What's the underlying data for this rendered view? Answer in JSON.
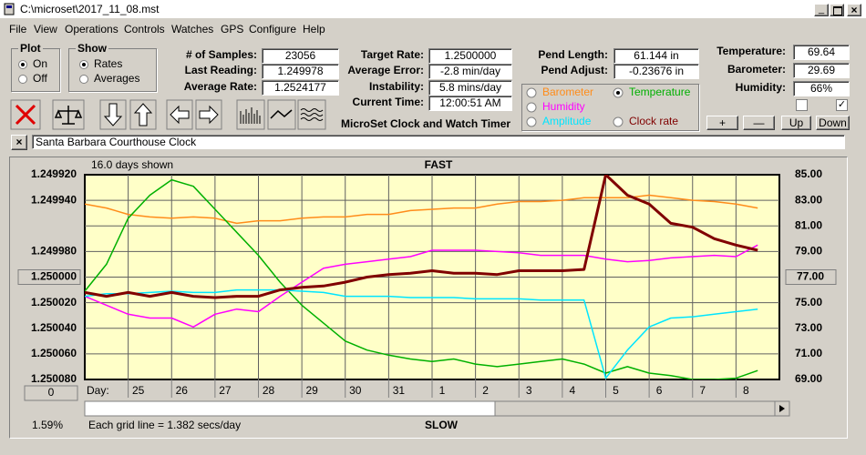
{
  "window": {
    "title": "C:\\microset\\2017_11_08.mst"
  },
  "menu": [
    "File",
    "View",
    "Operations",
    "Controls",
    "Watches",
    "GPS",
    "Configure",
    "Help"
  ],
  "plot_group": {
    "title": "Plot",
    "options": [
      {
        "label": "On",
        "checked": true
      },
      {
        "label": "Off",
        "checked": false
      }
    ]
  },
  "show_group": {
    "title": "Show",
    "options": [
      {
        "label": "Rates",
        "checked": true
      },
      {
        "label": "Averages",
        "checked": false
      }
    ]
  },
  "stats": [
    {
      "label": "# of Samples:",
      "value": "23056"
    },
    {
      "label": "Last Reading:",
      "value": "1.249978"
    },
    {
      "label": "Average Rate:",
      "value": "1.2524177"
    }
  ],
  "rate_stats": [
    {
      "label": "Target Rate:",
      "value": "1.2500000"
    },
    {
      "label": "Average Error:",
      "value": "-2.8 min/day"
    },
    {
      "label": "Instability:",
      "value": "5.8 mins/day"
    },
    {
      "label": "Current Time:",
      "value": "12:00:51 AM"
    }
  ],
  "pend": [
    {
      "label": "Pend Length:",
      "value": "61.144 in"
    },
    {
      "label": "Pend Adjust:",
      "value": "-0.23676 in"
    }
  ],
  "env": [
    {
      "label": "Temperature:",
      "value": "69.64"
    },
    {
      "label": "Barometer:",
      "value": "29.69"
    },
    {
      "label": "Humidity:",
      "value": "66%"
    }
  ],
  "checkboxes": [
    {
      "checked": false
    },
    {
      "checked": true
    }
  ],
  "buttons": [
    "+",
    "—",
    "Up",
    "Down"
  ],
  "app_name": "MicroSet Clock and Watch Timer",
  "clock_name": "Santa Barbara Courthouse Clock",
  "chart_data": {
    "type": "line",
    "selected_series": 1,
    "annotations": {
      "days_shown": "16.0 days shown",
      "top": "FAST",
      "bottom": "SLOW",
      "x_label": "Day:",
      "footer": "Each grid line = 1.382 secs/day",
      "percent": "1.59%",
      "button": "0"
    },
    "xlim": [
      0,
      16
    ],
    "xticks": [
      {
        "value": 1,
        "label": "25"
      },
      {
        "value": 2,
        "label": "26"
      },
      {
        "value": 3,
        "label": "27"
      },
      {
        "value": 4,
        "label": "28"
      },
      {
        "value": 5,
        "label": "29"
      },
      {
        "value": 6,
        "label": "30"
      },
      {
        "value": 7,
        "label": "31"
      },
      {
        "value": 8,
        "label": "1"
      },
      {
        "value": 9,
        "label": "2"
      },
      {
        "value": 10,
        "label": "3"
      },
      {
        "value": 11,
        "label": "4"
      },
      {
        "value": 12,
        "label": "5"
      },
      {
        "value": 13,
        "label": "6"
      },
      {
        "value": 14,
        "label": "7"
      },
      {
        "value": 15,
        "label": "8"
      }
    ],
    "ylim": [
      1.25008,
      1.24992
    ],
    "yticks": [
      {
        "value": 1.24992,
        "label": "1.249920"
      },
      {
        "value": 1.24994,
        "label": "1.249940"
      },
      {
        "value": 1.24998,
        "label": "1.249980"
      },
      {
        "value": 1.25,
        "label": "1.250000"
      },
      {
        "value": 1.25002,
        "label": "1.250020"
      },
      {
        "value": 1.25004,
        "label": "1.250040"
      },
      {
        "value": 1.25006,
        "label": "1.250060"
      },
      {
        "value": 1.25008,
        "label": "1.250080"
      }
    ],
    "y2lim": [
      69,
      85
    ],
    "y2ticks": [
      {
        "value": 85,
        "label": "85.00"
      },
      {
        "value": 83,
        "label": "83.00"
      },
      {
        "value": 81,
        "label": "81.00"
      },
      {
        "value": 79,
        "label": "79.00"
      },
      {
        "value": 77,
        "label": "77.00"
      },
      {
        "value": 75,
        "label": "75.00"
      },
      {
        "value": 73,
        "label": "73.00"
      },
      {
        "value": 71,
        "label": "71.00"
      },
      {
        "value": 69,
        "label": "69.00"
      }
    ],
    "grid": true,
    "x": [
      0,
      0.5,
      1,
      1.5,
      2,
      2.5,
      3,
      3.5,
      4,
      4.5,
      5,
      5.5,
      6,
      6.5,
      7,
      7.5,
      8,
      8.5,
      9,
      9.5,
      10,
      10.5,
      11,
      11.5,
      12,
      12.5,
      13,
      13.5,
      14,
      14.5,
      15,
      15.5
    ],
    "series": [
      {
        "name": "Barometer",
        "color": "#ff8c1a",
        "axis": "y2",
        "values": [
          82.7,
          82.4,
          81.9,
          81.7,
          81.6,
          81.7,
          81.6,
          81.2,
          81.4,
          81.4,
          81.6,
          81.7,
          81.7,
          81.9,
          81.9,
          82.2,
          82.3,
          82.4,
          82.4,
          82.7,
          82.9,
          82.9,
          83.0,
          83.2,
          83.2,
          83.2,
          83.4,
          83.2,
          83.0,
          82.9,
          82.7,
          82.4
        ]
      },
      {
        "name": "Temperature",
        "color": "#00b000",
        "axis": "y2",
        "values": [
          75.9,
          78.0,
          81.6,
          83.4,
          84.6,
          84.1,
          82.3,
          80.5,
          78.7,
          76.6,
          74.8,
          73.4,
          72.0,
          71.3,
          70.9,
          70.6,
          70.4,
          70.6,
          70.2,
          70.0,
          70.2,
          70.4,
          70.6,
          70.2,
          69.5,
          70.0,
          69.5,
          69.3,
          69.0,
          69.0,
          69.1,
          69.7
        ]
      },
      {
        "name": "Humidity",
        "color": "#ff00ff",
        "axis": "y2",
        "values": [
          75.5,
          74.8,
          74.1,
          73.8,
          73.8,
          73.1,
          74.1,
          74.5,
          74.3,
          75.5,
          76.6,
          77.7,
          78.0,
          78.2,
          78.4,
          78.6,
          79.1,
          79.1,
          79.1,
          79.0,
          78.9,
          78.7,
          78.7,
          78.7,
          78.4,
          78.2,
          78.3,
          78.5,
          78.6,
          78.7,
          78.6,
          79.5
        ]
      },
      {
        "name": "Amplitude",
        "color": "#00e5ff",
        "axis": "y2",
        "values": [
          75.5,
          75.7,
          75.7,
          75.8,
          75.9,
          75.8,
          75.8,
          76.0,
          76.0,
          76.0,
          75.9,
          75.8,
          75.5,
          75.5,
          75.5,
          75.4,
          75.4,
          75.4,
          75.3,
          75.3,
          75.3,
          75.2,
          75.2,
          75.2,
          69.1,
          71.3,
          73.1,
          73.8,
          73.9,
          74.1,
          74.3,
          74.5
        ]
      },
      {
        "name": "Clock rate",
        "color": "#800000",
        "values": [
          1.250012,
          1.250015,
          1.250012,
          1.250015,
          1.250012,
          1.250015,
          1.250016,
          1.250015,
          1.250015,
          1.25001,
          1.250008,
          1.250007,
          1.250004,
          1.25,
          1.249998,
          1.249997,
          1.249995,
          1.249997,
          1.249997,
          1.249998,
          1.249995,
          1.249995,
          1.249995,
          1.249994,
          1.24992,
          1.249936,
          1.249943,
          1.249958,
          1.249961,
          1.24997,
          1.249975,
          1.249979
        ]
      }
    ]
  }
}
